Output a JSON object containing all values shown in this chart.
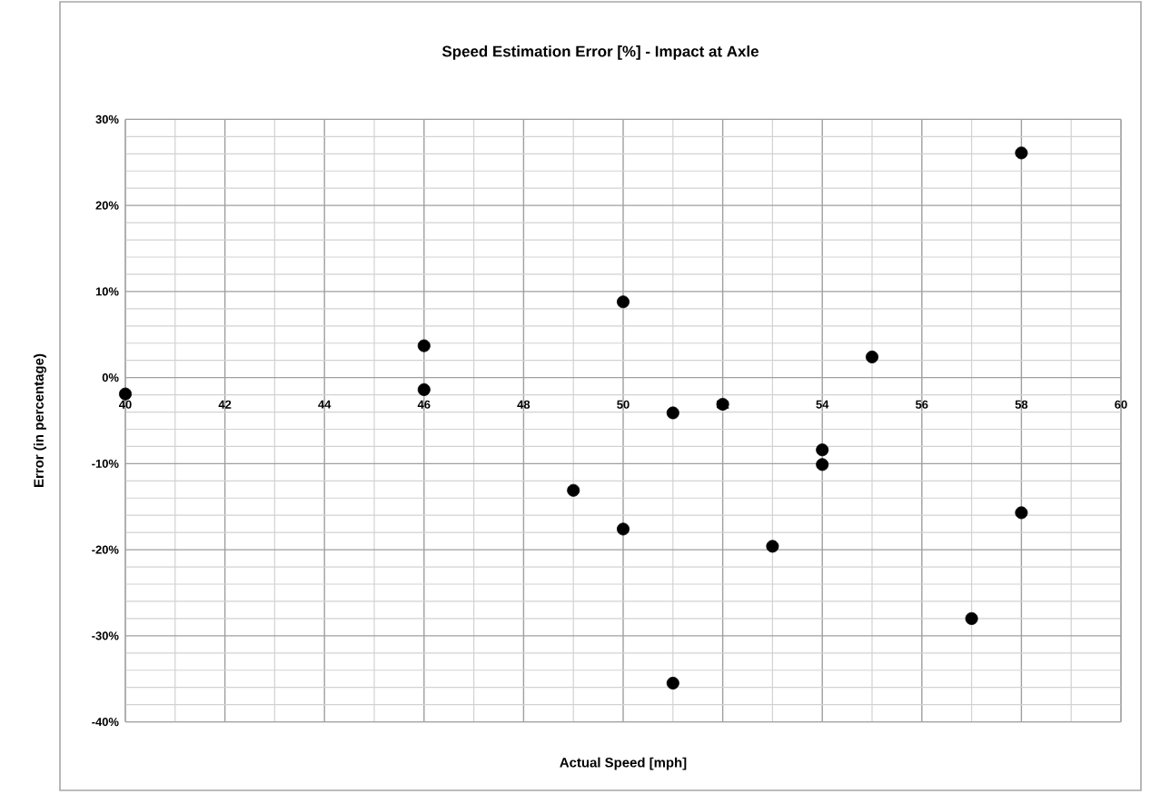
{
  "chart_data": {
    "type": "scatter",
    "title": "Speed Estimation Error [%] - Impact at Axle",
    "xlabel": "Actual Speed [mph]",
    "ylabel": "Error (in percentage)",
    "x": [
      40,
      46,
      46,
      49,
      50,
      50,
      51,
      51,
      52,
      53,
      54,
      54,
      55,
      57,
      58,
      58
    ],
    "series": [
      {
        "color": "#000000",
        "values": [
          -1.9,
          3.7,
          -1.4,
          -13.1,
          8.8,
          -17.6,
          -4.1,
          -35.5,
          -3.1,
          -19.6,
          -8.4,
          -10.1,
          2.4,
          -28.0,
          26.1,
          -15.7
        ]
      }
    ],
    "xlim": [
      40,
      60
    ],
    "xticks": [
      40,
      42,
      44,
      46,
      48,
      50,
      52,
      54,
      56,
      58,
      60
    ],
    "ylim": [
      -40,
      30
    ],
    "yticks": [
      {
        "value": -40,
        "label": "-40%"
      },
      {
        "value": -30,
        "label": "-30%"
      },
      {
        "value": -20,
        "label": "-20%"
      },
      {
        "value": -10,
        "label": "-10%"
      },
      {
        "value": 0,
        "label": "0%"
      },
      {
        "value": 10,
        "label": "10%"
      },
      {
        "value": 20,
        "label": "20%"
      },
      {
        "value": 30,
        "label": "30%"
      }
    ],
    "grid": true,
    "marker": "circle"
  }
}
